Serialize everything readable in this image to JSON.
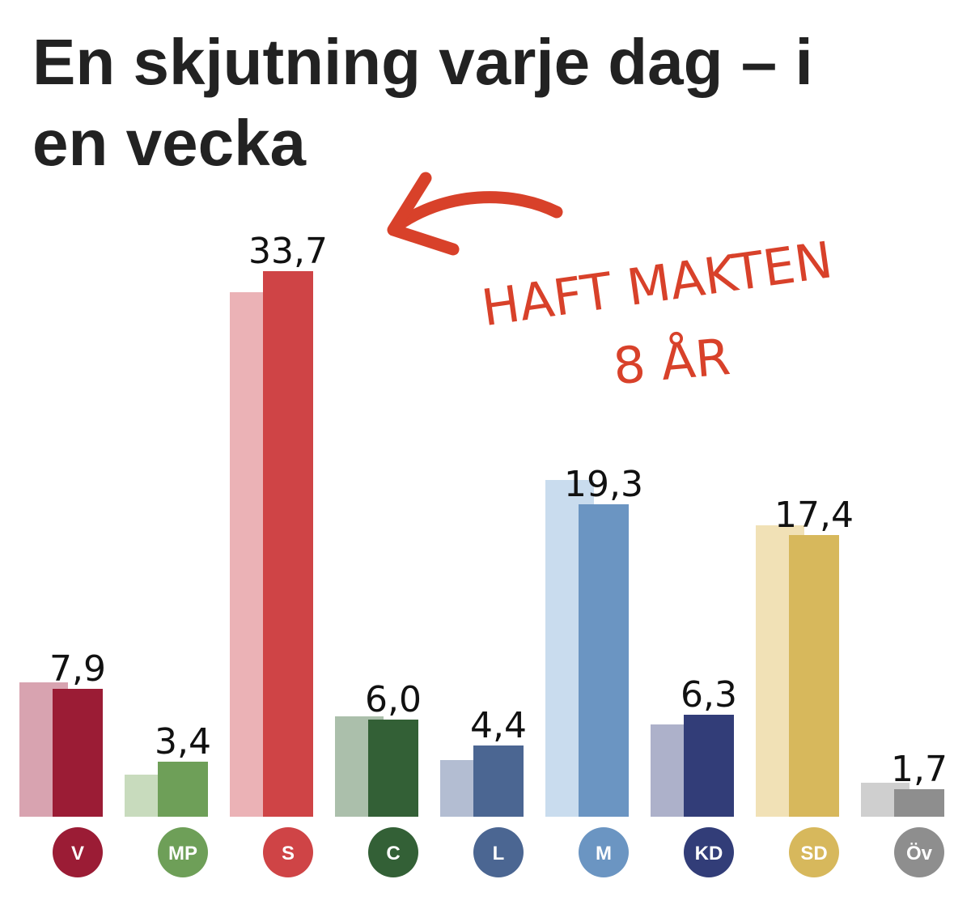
{
  "title_line1": "En skjutning varje dag – i",
  "title_line2": "en vecka",
  "annotation": {
    "line1": "HAFT MAKTEN",
    "line2": "8 ÅR",
    "color": "#d8412a",
    "points_to": "S"
  },
  "chart_data": {
    "type": "bar",
    "title": "En skjutning varje dag – i en vecka",
    "categories": [
      "V",
      "MP",
      "S",
      "C",
      "L",
      "M",
      "KD",
      "SD",
      "Öv"
    ],
    "series": [
      {
        "values": [
          8.3,
          2.6,
          32.4,
          6.2,
          3.5,
          20.8,
          5.7,
          18.0,
          2.1
        ]
      },
      {
        "values": [
          7.9,
          3.4,
          33.7,
          6.0,
          4.4,
          19.3,
          6.3,
          17.4,
          1.7
        ]
      }
    ],
    "value_labels": [
      "7,9",
      "3,4",
      "33,7",
      "6,0",
      "4,4",
      "19,3",
      "6,3",
      "17,4",
      "1,7"
    ],
    "ylim": [
      0,
      36
    ],
    "grid": false,
    "colors": {
      "current": [
        "#9b1c35",
        "#6e9f58",
        "#cf4446",
        "#336036",
        "#4b6692",
        "#6b95c2",
        "#323d78",
        "#d7b85c",
        "#8e8e8e"
      ],
      "previous": [
        "#d8a3b0",
        "#c8dbbd",
        "#ebb2b6",
        "#abbfab",
        "#b3bdd2",
        "#c9dcee",
        "#adb1ca",
        "#f1e1b6",
        "#cfcfcf"
      ],
      "badge": [
        "#9b1c35",
        "#6e9f58",
        "#cf4446",
        "#336036",
        "#4b6692",
        "#6b95c2",
        "#323d78",
        "#d7b85c",
        "#8e8e8e"
      ]
    }
  }
}
